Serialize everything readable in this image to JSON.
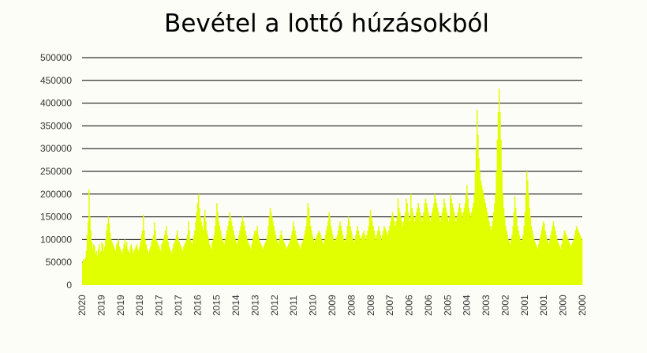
{
  "chart_data": {
    "type": "bar",
    "title": "Bevétel a lottó húzásokból",
    "xlabel": "",
    "ylabel": "",
    "ylim": [
      0,
      500000
    ],
    "y_ticks": [
      0,
      50000,
      100000,
      150000,
      200000,
      250000,
      300000,
      350000,
      400000,
      450000,
      500000
    ],
    "y_tick_labels": [
      "0",
      "50000",
      "100000",
      "150000",
      "200000",
      "250000",
      "300000",
      "350000",
      "400000",
      "450000",
      "500000"
    ],
    "x_tick_labels": [
      "2020",
      "2019",
      "2019",
      "2018",
      "2017",
      "2017",
      "2016",
      "2015",
      "2014",
      "2013",
      "2012",
      "2011",
      "2010",
      "2009",
      "2008",
      "2008",
      "2007",
      "2006",
      "2006",
      "2005",
      "2004",
      "2003",
      "2002",
      "2001",
      "2001",
      "2000",
      "2000"
    ],
    "grid": true,
    "legend": "none",
    "bar_color": "#e2ff00",
    "values": [
      50000,
      57000,
      55000,
      60000,
      75000,
      110000,
      140000,
      210000,
      150000,
      120000,
      95000,
      80000,
      90000,
      85000,
      70000,
      75000,
      65000,
      80000,
      90000,
      70000,
      75000,
      95000,
      90000,
      75000,
      85000,
      100000,
      120000,
      135000,
      150000,
      135000,
      115000,
      100000,
      95000,
      90000,
      85000,
      80000,
      75000,
      90000,
      95000,
      100000,
      85000,
      80000,
      75000,
      70000,
      80000,
      90000,
      100000,
      85000,
      95000,
      80000,
      75000,
      70000,
      85000,
      90000,
      80000,
      70000,
      75000,
      80000,
      85000,
      90000,
      80000,
      75000,
      85000,
      95000,
      110000,
      120000,
      155000,
      120000,
      100000,
      90000,
      80000,
      75000,
      70000,
      80000,
      85000,
      95000,
      100000,
      110000,
      138000,
      120000,
      100000,
      95000,
      90000,
      85000,
      80000,
      75000,
      90000,
      95000,
      100000,
      110000,
      120000,
      130000,
      110000,
      95000,
      85000,
      80000,
      75000,
      70000,
      80000,
      90000,
      95000,
      100000,
      110000,
      120000,
      105000,
      95000,
      90000,
      85000,
      80000,
      75000,
      85000,
      90000,
      95000,
      100000,
      110000,
      140000,
      120000,
      100000,
      95000,
      90000,
      100000,
      110000,
      120000,
      140000,
      160000,
      180000,
      200000,
      170000,
      150000,
      140000,
      130000,
      120000,
      150000,
      165000,
      140000,
      120000,
      110000,
      100000,
      90000,
      85000,
      80000,
      95000,
      100000,
      110000,
      130000,
      150000,
      180000,
      160000,
      140000,
      130000,
      120000,
      110000,
      100000,
      95000,
      90000,
      100000,
      110000,
      120000,
      130000,
      140000,
      160000,
      150000,
      140000,
      130000,
      120000,
      110000,
      100000,
      95000,
      90000,
      100000,
      110000,
      120000,
      130000,
      140000,
      150000,
      140000,
      130000,
      120000,
      110000,
      100000,
      95000,
      90000,
      85000,
      80000,
      90000,
      100000,
      110000,
      120000,
      115000,
      120000,
      130000,
      110000,
      100000,
      95000,
      90000,
      85000,
      80000,
      85000,
      90000,
      95000,
      100000,
      110000,
      130000,
      150000,
      170000,
      160000,
      150000,
      140000,
      130000,
      120000,
      110000,
      100000,
      95000,
      90000,
      100000,
      110000,
      120000,
      110000,
      100000,
      95000,
      90000,
      85000,
      80000,
      85000,
      90000,
      95000,
      100000,
      110000,
      120000,
      140000,
      130000,
      120000,
      110000,
      100000,
      95000,
      90000,
      85000,
      80000,
      90000,
      95000,
      100000,
      110000,
      120000,
      130000,
      150000,
      180000,
      170000,
      150000,
      130000,
      120000,
      110000,
      100000,
      95000,
      100000,
      105000,
      110000,
      115000,
      120000,
      115000,
      110000,
      100000,
      95000,
      90000,
      100000,
      110000,
      120000,
      130000,
      140000,
      160000,
      150000,
      130000,
      120000,
      110000,
      100000,
      95000,
      100000,
      105000,
      110000,
      120000,
      130000,
      140000,
      130000,
      120000,
      110000,
      100000,
      95000,
      100000,
      110000,
      130000,
      150000,
      140000,
      130000,
      120000,
      110000,
      100000,
      95000,
      100000,
      110000,
      120000,
      130000,
      120000,
      110000,
      100000,
      105000,
      110000,
      115000,
      120000,
      110000,
      100000,
      110000,
      120000,
      130000,
      150000,
      165000,
      150000,
      140000,
      130000,
      120000,
      110000,
      100000,
      110000,
      120000,
      130000,
      120000,
      110000,
      100000,
      110000,
      120000,
      130000,
      125000,
      120000,
      115000,
      110000,
      120000,
      130000,
      140000,
      150000,
      160000,
      150000,
      140000,
      130000,
      140000,
      150000,
      190000,
      170000,
      160000,
      150000,
      140000,
      130000,
      140000,
      150000,
      160000,
      190000,
      180000,
      160000,
      150000,
      140000,
      200000,
      170000,
      160000,
      150000,
      140000,
      150000,
      160000,
      170000,
      180000,
      170000,
      160000,
      150000,
      140000,
      150000,
      160000,
      180000,
      190000,
      180000,
      170000,
      160000,
      150000,
      140000,
      150000,
      160000,
      170000,
      180000,
      200000,
      190000,
      180000,
      170000,
      160000,
      150000,
      140000,
      150000,
      160000,
      170000,
      190000,
      180000,
      170000,
      160000,
      150000,
      140000,
      150000,
      200000,
      190000,
      180000,
      170000,
      160000,
      150000,
      140000,
      150000,
      160000,
      170000,
      180000,
      170000,
      160000,
      150000,
      160000,
      170000,
      180000,
      200000,
      220000,
      190000,
      170000,
      160000,
      150000,
      160000,
      170000,
      180000,
      200000,
      250000,
      300000,
      385000,
      330000,
      280000,
      250000,
      230000,
      220000,
      210000,
      200000,
      190000,
      180000,
      170000,
      160000,
      150000,
      140000,
      130000,
      120000,
      130000,
      140000,
      160000,
      180000,
      200000,
      250000,
      320000,
      380000,
      432000,
      380000,
      320000,
      250000,
      200000,
      170000,
      150000,
      130000,
      120000,
      110000,
      100000,
      95000,
      90000,
      100000,
      110000,
      130000,
      160000,
      195000,
      170000,
      150000,
      130000,
      120000,
      110000,
      100000,
      95000,
      100000,
      110000,
      130000,
      160000,
      200000,
      250000,
      230000,
      200000,
      170000,
      150000,
      130000,
      120000,
      110000,
      100000,
      95000,
      90000,
      85000,
      80000,
      90000,
      100000,
      110000,
      120000,
      130000,
      140000,
      135000,
      120000,
      110000,
      100000,
      95000,
      90000,
      100000,
      110000,
      120000,
      130000,
      140000,
      130000,
      120000,
      110000,
      100000,
      95000,
      90000,
      85000,
      80000,
      90000,
      100000,
      110000,
      120000,
      115000,
      110000,
      105000,
      100000,
      95000,
      90000,
      85000,
      90000,
      95000,
      100000,
      110000,
      120000,
      130000,
      125000,
      120000,
      115000,
      110000,
      105000,
      100000
    ]
  }
}
